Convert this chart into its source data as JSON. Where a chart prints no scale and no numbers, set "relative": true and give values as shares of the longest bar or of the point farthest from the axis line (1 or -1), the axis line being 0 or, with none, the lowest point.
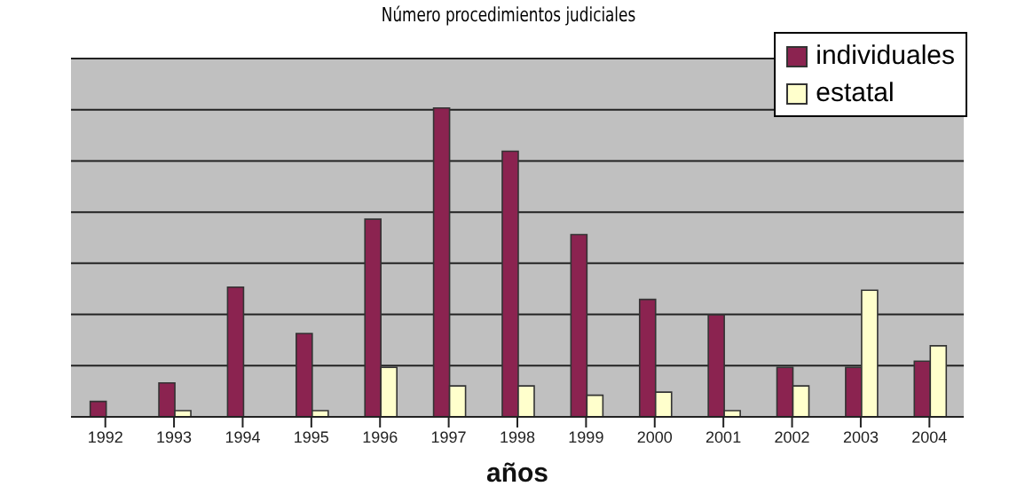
{
  "chart_data": {
    "type": "bar",
    "title": "Número procedimientos judiciales",
    "xlabel": "años",
    "relative": true,
    "grid": "y",
    "legend": "top right",
    "categories": [
      "1992",
      "1993",
      "1994",
      "1995",
      "1996",
      "1997",
      "1998",
      "1999",
      "2000",
      "2001",
      "2002",
      "2003",
      "2004"
    ],
    "series": [
      {
        "name": "individuales",
        "color": "#8b2350",
        "values": [
          0.05,
          0.11,
          0.42,
          0.27,
          0.64,
          1,
          0.86,
          0.59,
          0.38,
          0.33,
          0.16,
          0.16,
          0.18
        ]
      },
      {
        "name": "estatal",
        "color": "#ffffcc",
        "values": [
          0,
          0.02,
          0,
          0.02,
          0.16,
          0.1,
          0.1,
          0.07,
          0.08,
          0.02,
          0.1,
          0.41,
          0.23
        ]
      }
    ]
  }
}
